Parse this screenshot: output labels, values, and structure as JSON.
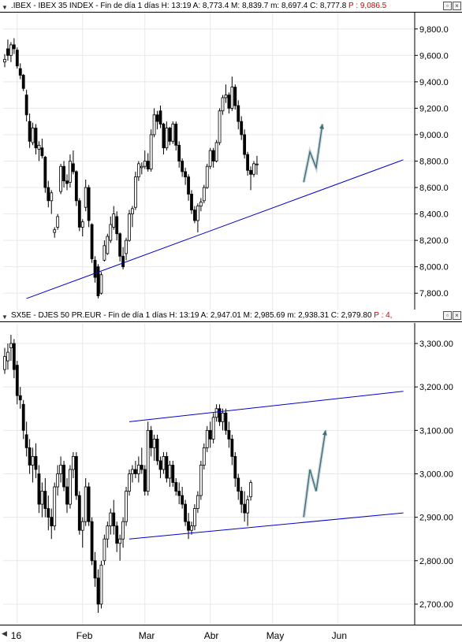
{
  "top_header": {
    "menu_icon": "triangle-down-icon",
    "symbol": ".IBEX - IBEX 35 INDEX - Fin de día 1 días",
    "stats": "H: 13:19  A: 8,773.4  M: 8,839.7  m: 8,697.4  C: 8,777.8",
    "p_value": "P : 9,086.5"
  },
  "bottom_header": {
    "menu_icon": "triangle-down-icon",
    "symbol": "SX5E - DJES 50 PR.EUR - Fin de día 1 días",
    "stats": "H: 13:19  A: 2,947.01  M: 2,985.69  m: 2,938.31  C: 2,979.80",
    "p_value": "P : 4,"
  },
  "window_controls": [
    "minimize-icon",
    "close-icon"
  ],
  "x_axis": {
    "labels": [
      {
        "text": "16",
        "i": 4
      },
      {
        "text": "Feb",
        "i": 25
      },
      {
        "text": "Mar",
        "i": 45
      },
      {
        "text": "Abr",
        "i": 66
      },
      {
        "text": "May",
        "i": 86
      },
      {
        "text": "Jun",
        "i": 107
      }
    ]
  },
  "chart_data": [
    {
      "type": "candlestick",
      "name": "IBEX 35 INDEX",
      "ylim": [
        7700,
        9900
      ],
      "yticks": [
        7800,
        8000,
        8200,
        8400,
        8600,
        8800,
        9000,
        9200,
        9400,
        9600,
        9800
      ],
      "ytick_labels": [
        "7,800.0",
        "8,000.0",
        "8,200.0",
        "8,400.0",
        "8,600.0",
        "8,800.0",
        "9,000.0",
        "9,200.0",
        "9,400.0",
        "9,600.0",
        "9,800.0"
      ],
      "grid": true,
      "ohlc": [
        [
          9550,
          9610,
          9510,
          9570
        ],
        [
          9650,
          9720,
          9560,
          9600
        ],
        [
          9600,
          9700,
          9550,
          9680
        ],
        [
          9680,
          9730,
          9610,
          9650
        ],
        [
          9640,
          9660,
          9500,
          9520
        ],
        [
          9500,
          9540,
          9420,
          9450
        ],
        [
          9450,
          9460,
          9330,
          9350
        ],
        [
          9300,
          9340,
          9100,
          9150
        ],
        [
          9100,
          9160,
          8900,
          8950
        ],
        [
          8940,
          9090,
          8920,
          9050
        ],
        [
          9050,
          9080,
          8850,
          8900
        ],
        [
          8890,
          8950,
          8800,
          8920
        ],
        [
          8900,
          8970,
          8820,
          8840
        ],
        [
          8830,
          8840,
          8560,
          8600
        ],
        [
          8600,
          8650,
          8450,
          8500
        ],
        [
          8500,
          8580,
          8400,
          8560
        ],
        [
          8260,
          8300,
          8220,
          8280
        ],
        [
          8300,
          8400,
          8280,
          8380
        ],
        [
          8570,
          8780,
          8550,
          8760
        ],
        [
          8760,
          8800,
          8600,
          8650
        ],
        [
          8650,
          8700,
          8580,
          8630
        ],
        [
          8640,
          8850,
          8600,
          8800
        ],
        [
          8780,
          8880,
          8700,
          8720
        ],
        [
          8720,
          8730,
          8460,
          8500
        ],
        [
          8500,
          8520,
          8270,
          8300
        ],
        [
          8300,
          8360,
          8230,
          8340
        ],
        [
          8450,
          8660,
          8420,
          8600
        ],
        [
          8600,
          8620,
          8300,
          8350
        ],
        [
          8320,
          8330,
          8030,
          8060
        ],
        [
          8050,
          8080,
          7880,
          7920
        ],
        [
          8000,
          8020,
          7760,
          7780
        ],
        [
          7800,
          7960,
          7790,
          7940
        ],
        [
          8050,
          8200,
          8040,
          8160
        ],
        [
          8100,
          8250,
          8090,
          8230
        ],
        [
          8200,
          8380,
          8180,
          8320
        ],
        [
          8300,
          8460,
          8280,
          8400
        ],
        [
          8380,
          8420,
          8200,
          8250
        ],
        [
          8250,
          8260,
          8040,
          8080
        ],
        [
          8080,
          8150,
          7980,
          8000
        ],
        [
          8100,
          8220,
          8050,
          8200
        ],
        [
          8200,
          8430,
          8190,
          8400
        ],
        [
          8400,
          8460,
          8300,
          8440
        ],
        [
          8450,
          8720,
          8430,
          8680
        ],
        [
          8680,
          8800,
          8650,
          8780
        ],
        [
          8750,
          8790,
          8700,
          8760
        ],
        [
          8760,
          8880,
          8740,
          8800
        ],
        [
          8800,
          8860,
          8720,
          8740
        ],
        [
          8740,
          9040,
          8720,
          9000
        ],
        [
          9000,
          9200,
          8980,
          9150
        ],
        [
          9150,
          9180,
          9040,
          9100
        ],
        [
          9180,
          9220,
          9050,
          9080
        ],
        [
          9080,
          9090,
          8850,
          8900
        ],
        [
          8900,
          9100,
          8880,
          9050
        ],
        [
          9050,
          9060,
          8920,
          8950
        ],
        [
          8950,
          9100,
          8930,
          9080
        ],
        [
          9080,
          9100,
          8880,
          8920
        ],
        [
          8920,
          8950,
          8750,
          8800
        ],
        [
          8800,
          8820,
          8680,
          8720
        ],
        [
          8720,
          8750,
          8620,
          8680
        ],
        [
          8680,
          8700,
          8500,
          8550
        ],
        [
          8550,
          8580,
          8400,
          8430
        ],
        [
          8430,
          8460,
          8330,
          8350
        ],
        [
          8350,
          8480,
          8260,
          8460
        ],
        [
          8460,
          8520,
          8420,
          8490
        ],
        [
          8500,
          8620,
          8480,
          8600
        ],
        [
          8600,
          8780,
          8590,
          8760
        ],
        [
          8760,
          8900,
          8740,
          8880
        ],
        [
          8880,
          8900,
          8750,
          8800
        ],
        [
          8800,
          8960,
          8790,
          8940
        ],
        [
          8940,
          9200,
          8920,
          9180
        ],
        [
          9180,
          9300,
          9150,
          9280
        ],
        [
          9280,
          9380,
          9240,
          9300
        ],
        [
          9300,
          9320,
          9160,
          9200
        ],
        [
          9200,
          9440,
          9180,
          9360
        ],
        [
          9360,
          9380,
          9190,
          9220
        ],
        [
          9220,
          9260,
          9040,
          9100
        ],
        [
          9100,
          9140,
          8960,
          9000
        ],
        [
          9000,
          9040,
          8820,
          8850
        ],
        [
          8850,
          8870,
          8690,
          8730
        ],
        [
          8730,
          8760,
          8580,
          8700
        ],
        [
          8700,
          8800,
          8680,
          8780
        ],
        [
          8773.4,
          8839.7,
          8697.4,
          8777.8
        ]
      ],
      "annotations": [
        {
          "type": "trendline",
          "from": [
            7,
            7760
          ],
          "to": [
            128,
            8810
          ]
        }
      ],
      "projection": [
        [
          96,
          8640
        ],
        [
          98,
          8870
        ],
        [
          100,
          8750
        ],
        [
          102,
          9080
        ]
      ]
    },
    {
      "type": "candlestick",
      "name": "DJES 50 PR.EUR",
      "ylim": [
        2660,
        3340
      ],
      "yticks": [
        2700,
        2800,
        2900,
        3000,
        3100,
        3200,
        3300
      ],
      "ytick_labels": [
        "2,700.00",
        "2,800.00",
        "2,900.00",
        "3,000.00",
        "3,100.00",
        "3,200.00",
        "3,300.00"
      ],
      "grid": true,
      "ohlc": [
        [
          3240,
          3290,
          3230,
          3270
        ],
        [
          3260,
          3300,
          3240,
          3280
        ],
        [
          3290,
          3320,
          3260,
          3300
        ],
        [
          3300,
          3310,
          3220,
          3240
        ],
        [
          3250,
          3260,
          3160,
          3180
        ],
        [
          3180,
          3200,
          3150,
          3170
        ],
        [
          3160,
          3170,
          3080,
          3100
        ],
        [
          3090,
          3120,
          3040,
          3060
        ],
        [
          3060,
          3080,
          3000,
          3020
        ],
        [
          3020,
          3060,
          2980,
          3040
        ],
        [
          3040,
          3070,
          2990,
          3010
        ],
        [
          3000,
          3020,
          2910,
          2930
        ],
        [
          2930,
          2980,
          2900,
          2960
        ],
        [
          2960,
          2990,
          2900,
          2920
        ],
        [
          2920,
          2950,
          2870,
          2900
        ],
        [
          2900,
          2920,
          2850,
          2880
        ],
        [
          2880,
          2980,
          2870,
          2970
        ],
        [
          2970,
          3020,
          2950,
          3000
        ],
        [
          3000,
          3040,
          2980,
          3020
        ],
        [
          3020,
          3030,
          2960,
          2970
        ],
        [
          2970,
          2990,
          2910,
          2930
        ],
        [
          2930,
          3020,
          2920,
          3010
        ],
        [
          3010,
          3050,
          2990,
          3040
        ],
        [
          3040,
          3050,
          2940,
          2950
        ],
        [
          2950,
          2960,
          2860,
          2870
        ],
        [
          2870,
          2900,
          2830,
          2890
        ],
        [
          2890,
          2990,
          2880,
          2970
        ],
        [
          2970,
          2980,
          2880,
          2890
        ],
        [
          2890,
          2900,
          2790,
          2800
        ],
        [
          2800,
          2820,
          2740,
          2760
        ],
        [
          2760,
          2780,
          2680,
          2700
        ],
        [
          2700,
          2800,
          2690,
          2790
        ],
        [
          2800,
          2860,
          2790,
          2850
        ],
        [
          2850,
          2890,
          2830,
          2880
        ],
        [
          2880,
          2920,
          2860,
          2910
        ],
        [
          2910,
          2940,
          2860,
          2880
        ],
        [
          2880,
          2890,
          2820,
          2840
        ],
        [
          2840,
          2860,
          2800,
          2850
        ],
        [
          2850,
          2900,
          2830,
          2890
        ],
        [
          2890,
          2970,
          2880,
          2960
        ],
        [
          2960,
          3010,
          2950,
          3000
        ],
        [
          3000,
          3020,
          2980,
          3010
        ],
        [
          3010,
          3030,
          2990,
          3000
        ],
        [
          3000,
          3040,
          2980,
          3020
        ],
        [
          3020,
          3060,
          3000,
          3010
        ],
        [
          3010,
          3020,
          2950,
          2960
        ],
        [
          2960,
          3120,
          2950,
          3100
        ],
        [
          3100,
          3110,
          3040,
          3060
        ],
        [
          3060,
          3090,
          3030,
          3080
        ],
        [
          3080,
          3090,
          3020,
          3030
        ],
        [
          3030,
          3040,
          2990,
          3010
        ],
        [
          3010,
          3050,
          3000,
          3040
        ],
        [
          3040,
          3050,
          2980,
          2990
        ],
        [
          2990,
          3030,
          2970,
          3020
        ],
        [
          3020,
          3030,
          2970,
          2980
        ],
        [
          2980,
          2990,
          2950,
          2960
        ],
        [
          2960,
          2980,
          2930,
          2950
        ],
        [
          2950,
          2970,
          2920,
          2930
        ],
        [
          2930,
          2940,
          2880,
          2890
        ],
        [
          2890,
          2910,
          2850,
          2870
        ],
        [
          2870,
          2890,
          2860,
          2880
        ],
        [
          2880,
          2930,
          2870,
          2920
        ],
        [
          2920,
          2960,
          2910,
          2950
        ],
        [
          2950,
          3030,
          2940,
          3020
        ],
        [
          3020,
          3070,
          3010,
          3060
        ],
        [
          3060,
          3110,
          3050,
          3100
        ],
        [
          3100,
          3120,
          3060,
          3080
        ],
        [
          3080,
          3140,
          3070,
          3130
        ],
        [
          3130,
          3160,
          3120,
          3150
        ],
        [
          3150,
          3160,
          3110,
          3120
        ],
        [
          3120,
          3150,
          3100,
          3140
        ],
        [
          3140,
          3150,
          3090,
          3100
        ],
        [
          3100,
          3120,
          3060,
          3080
        ],
        [
          3080,
          3090,
          3020,
          3040
        ],
        [
          3040,
          3050,
          2970,
          2990
        ],
        [
          2990,
          3000,
          2940,
          2960
        ],
        [
          2960,
          2970,
          2910,
          2930
        ],
        [
          2930,
          2960,
          2890,
          2910
        ],
        [
          2910,
          2950,
          2880,
          2940
        ],
        [
          2947.01,
          2985.69,
          2938.31,
          2979.8
        ]
      ],
      "annotations": [
        {
          "type": "trendline",
          "from": [
            40,
            3120
          ],
          "to": [
            128,
            3190
          ]
        },
        {
          "type": "trendline",
          "from": [
            40,
            2850
          ],
          "to": [
            128,
            2910
          ]
        }
      ],
      "projection": [
        [
          96,
          2900
        ],
        [
          98,
          3010
        ],
        [
          100,
          2960
        ],
        [
          103,
          3100
        ]
      ]
    }
  ],
  "colors": {
    "candle": "#000000",
    "up_fill": "#ffffff",
    "down_fill": "#000000",
    "trendline": "#0000cc",
    "projection": "#3f6f7a",
    "grid": "#e8e8e8",
    "p_value": "#d00000"
  }
}
